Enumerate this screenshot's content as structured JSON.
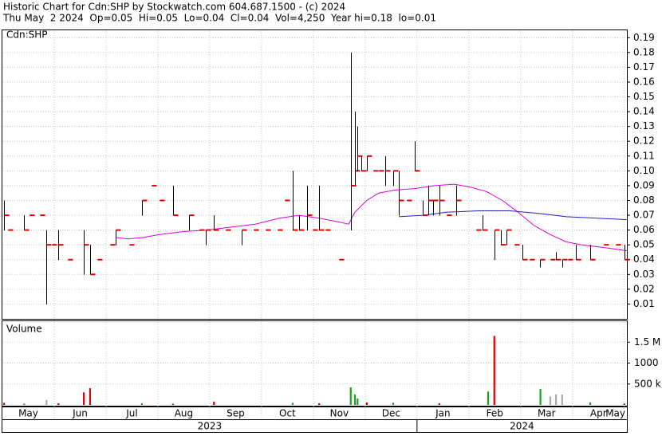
{
  "chart_data": [
    {
      "type": "hlc",
      "title": "Historic Chart for Cdn:SHP by Stockwatch.com 604.687.1500 - (c) 2024",
      "subtitle": "Thu May  2 2024  Op=0.05  Hi=0.05  Lo=0.04  Cl=0.04  Vol=4,250  Year hi=0.18  lo=0.01",
      "label": "Cdn:SHP",
      "color": "#000000",
      "close_color": "#e00000",
      "x": [
        0.03,
        0.11,
        0.42,
        0.52,
        0.72,
        0.85,
        0.95,
        1.08,
        1.26,
        1.57,
        1.69,
        1.83,
        2.08,
        2.18,
        2.45,
        2.69,
        2.88,
        3.03,
        3.29,
        3.6,
        3.8,
        3.92,
        4.08,
        4.31,
        4.62,
        4.85,
        5.08,
        5.31,
        5.45,
        5.6,
        5.72,
        5.88,
        5.98,
        6.11,
        6.23,
        6.49,
        6.72,
        6.8,
        6.85,
        6.92,
        7.03,
        7.15,
        7.26,
        7.38,
        7.54,
        7.65,
        7.8,
        7.95,
        8.11,
        8.22,
        8.31,
        8.43,
        8.57,
        8.75,
        9.14,
        9.26,
        9.49,
        9.62,
        9.72,
        9.88,
        10.03,
        10.18,
        10.38,
        10.57,
        10.68,
        10.8,
        10.91,
        11.06,
        11.34,
        11.6,
        11.83,
        12.0
      ],
      "high": [
        0.08,
        0.06,
        0.07,
        0.07,
        0.07,
        0.06,
        0.05,
        0.06,
        0.04,
        0.06,
        0.05,
        0.04,
        0.05,
        0.06,
        0.05,
        0.08,
        0.09,
        0.08,
        0.09,
        0.07,
        0.06,
        0.06,
        0.07,
        0.06,
        0.06,
        0.06,
        0.06,
        0.06,
        0.08,
        0.1,
        0.07,
        0.09,
        0.06,
        0.09,
        0.06,
        0.04,
        0.18,
        0.14,
        0.13,
        0.11,
        0.11,
        0.1,
        0.1,
        0.11,
        0.1,
        0.1,
        0.08,
        0.12,
        0.08,
        0.09,
        0.08,
        0.09,
        0.07,
        0.09,
        0.06,
        0.07,
        0.06,
        0.06,
        0.06,
        0.05,
        0.05,
        0.04,
        0.04,
        0.04,
        0.045,
        0.04,
        0.04,
        0.05,
        0.05,
        0.05,
        0.05,
        0.05
      ],
      "low": [
        0.06,
        0.06,
        0.06,
        0.07,
        0.07,
        0.01,
        0.05,
        0.04,
        0.04,
        0.03,
        0.03,
        0.04,
        0.05,
        0.05,
        0.05,
        0.07,
        0.09,
        0.08,
        0.07,
        0.06,
        0.06,
        0.05,
        0.06,
        0.06,
        0.05,
        0.06,
        0.06,
        0.06,
        0.08,
        0.06,
        0.06,
        0.06,
        0.06,
        0.06,
        0.06,
        0.04,
        0.06,
        0.09,
        0.1,
        0.1,
        0.1,
        0.1,
        0.1,
        0.09,
        0.09,
        0.07,
        0.08,
        0.1,
        0.07,
        0.07,
        0.07,
        0.07,
        0.07,
        0.07,
        0.06,
        0.06,
        0.04,
        0.05,
        0.05,
        0.05,
        0.04,
        0.04,
        0.035,
        0.04,
        0.04,
        0.035,
        0.04,
        0.04,
        0.04,
        0.05,
        0.05,
        0.04
      ],
      "close": [
        0.07,
        0.06,
        0.06,
        0.07,
        0.07,
        0.05,
        0.05,
        0.05,
        0.04,
        0.05,
        0.03,
        0.04,
        0.05,
        0.06,
        0.05,
        0.08,
        0.09,
        0.08,
        0.07,
        0.07,
        0.06,
        0.06,
        0.06,
        0.06,
        0.06,
        0.06,
        0.06,
        0.06,
        0.08,
        0.06,
        0.06,
        0.07,
        0.06,
        0.06,
        0.06,
        0.04,
        0.09,
        0.1,
        0.11,
        0.1,
        0.11,
        0.1,
        0.1,
        0.1,
        0.1,
        0.08,
        0.08,
        0.1,
        0.07,
        0.08,
        0.08,
        0.08,
        0.07,
        0.08,
        0.06,
        0.06,
        0.06,
        0.05,
        0.06,
        0.05,
        0.04,
        0.04,
        0.04,
        0.04,
        0.04,
        0.04,
        0.04,
        0.04,
        0.04,
        0.05,
        0.05,
        0.04
      ],
      "series": [
        {
          "color": "#e000e0",
          "x": [
            2.18,
            2.42,
            2.72,
            3.03,
            3.49,
            3.95,
            4.42,
            4.88,
            5.34,
            5.72,
            6.11,
            6.42,
            6.68,
            6.8,
            7.03,
            7.26,
            7.57,
            7.95,
            8.34,
            8.72,
            9.03,
            9.34,
            9.65,
            9.95,
            10.26,
            10.57,
            10.88,
            11.18,
            11.65,
            12.05
          ],
          "values": [
            0.055,
            0.054,
            0.055,
            0.057,
            0.059,
            0.06,
            0.062,
            0.064,
            0.068,
            0.07,
            0.068,
            0.066,
            0.064,
            0.072,
            0.08,
            0.085,
            0.087,
            0.088,
            0.09,
            0.091,
            0.089,
            0.086,
            0.08,
            0.072,
            0.063,
            0.057,
            0.052,
            0.05,
            0.048,
            0.046
          ]
        },
        {
          "color": "#2020c0",
          "x": [
            7.65,
            8.11,
            8.57,
            9.18,
            9.8,
            10.42,
            10.88,
            11.49,
            12.05
          ],
          "values": [
            0.069,
            0.07,
            0.072,
            0.073,
            0.073,
            0.071,
            0.069,
            0.068,
            0.067
          ]
        }
      ],
      "xlim": [
        0,
        12.05
      ],
      "ylim": [
        0,
        0.195
      ],
      "yticks": [
        0.01,
        0.02,
        0.03,
        0.04,
        0.05,
        0.06,
        0.07,
        0.08,
        0.09,
        {
          "value": 0.1,
          "label": "0.10"
        },
        0.11,
        0.12,
        0.13,
        0.14,
        0.15,
        0.16,
        0.17,
        0.18,
        0.19
      ],
      "xticks": [
        {
          "value": 0,
          "label": "May"
        },
        {
          "value": 1,
          "label": "Jun"
        },
        {
          "value": 2,
          "label": "Jul"
        },
        {
          "value": 3,
          "label": "Aug"
        },
        {
          "value": 4,
          "label": "Sep"
        },
        {
          "value": 5,
          "label": "Oct"
        },
        {
          "value": 6,
          "label": "Nov"
        },
        {
          "value": 7,
          "label": "Dec"
        },
        {
          "value": 8,
          "label": "Jan"
        },
        {
          "value": 9,
          "label": "Feb"
        },
        {
          "value": 10,
          "label": "Mar"
        },
        {
          "value": 11,
          "label": "Apr"
        },
        {
          "value": 12,
          "label": "May"
        }
      ],
      "years": [
        {
          "value": 0,
          "label": "2023"
        },
        {
          "value": 8,
          "label": "2024"
        }
      ],
      "grid": true
    },
    {
      "type": "bar",
      "label": "Volume",
      "x": [
        0.03,
        0.42,
        0.85,
        1.08,
        1.57,
        1.69,
        2.69,
        3.29,
        4.08,
        5.6,
        6.11,
        6.72,
        6.8,
        6.85,
        7.03,
        7.54,
        8.43,
        9.37,
        9.49,
        10.38,
        10.57,
        10.68,
        10.8,
        11.34,
        12.0
      ],
      "values": [
        50000,
        30000,
        120000,
        40000,
        300000,
        400000,
        40000,
        30000,
        80000,
        50000,
        40000,
        420000,
        250000,
        150000,
        60000,
        50000,
        40000,
        320000,
        1650000,
        380000,
        200000,
        250000,
        250000,
        60000,
        30000
      ],
      "colors": [
        "#e00000",
        "#20a020",
        "#aaaaaa",
        "#e00000",
        "#e00000",
        "#e00000",
        "#20a020",
        "#e00000",
        "#e00000",
        "#20a020",
        "#e00000",
        "#20a020",
        "#20a020",
        "#20a020",
        "#e00000",
        "#20a020",
        "#e00000",
        "#20a020",
        "#e00000",
        "#20a020",
        "#aaaaaa",
        "#aaaaaa",
        "#aaaaaa",
        "#20a020",
        "#e00000"
      ],
      "xlim": [
        0,
        12.05
      ],
      "ylim": [
        0,
        2000000
      ],
      "yticks": [
        {
          "value": 500000,
          "label": "500 k"
        },
        {
          "value": 1000000,
          "label": "1000 k"
        },
        {
          "value": 1500000,
          "label": "1.5 M"
        }
      ],
      "grid": true
    }
  ]
}
